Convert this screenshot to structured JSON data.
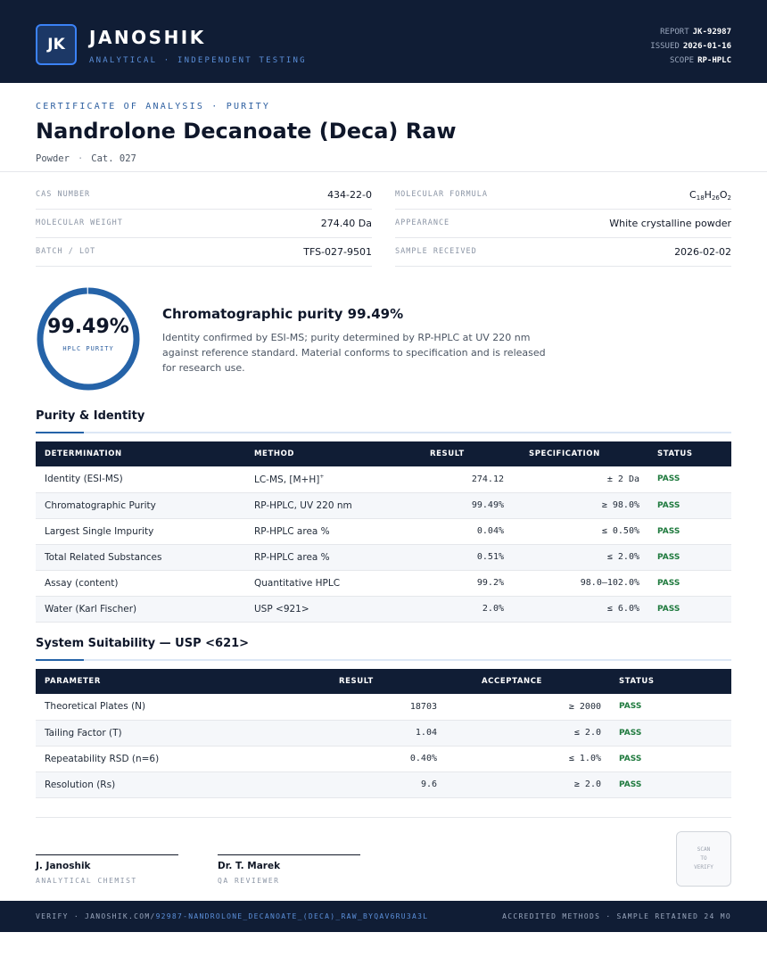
{
  "header": {
    "logo_initials": "JK",
    "brand": "JANOSHIK",
    "tagline": "ANALYTICAL · INDEPENDENT TESTING",
    "meta": [
      {
        "label": "REPORT",
        "value": "JK-92987"
      },
      {
        "label": "ISSUED",
        "value": "2026-01-16"
      },
      {
        "label": "SCOPE",
        "value": "RP-HPLC"
      }
    ]
  },
  "document": {
    "kicker": "CERTIFICATE OF ANALYSIS · PURITY",
    "title": "Nandrolone Decanoate (Deca) Raw",
    "form": "Powder",
    "catalog": "Cat. 027"
  },
  "properties": [
    {
      "label": "CAS NUMBER",
      "value": "434-22-0"
    },
    {
      "label": "MOLECULAR FORMULA",
      "value": "C",
      "formula": [
        {
          "el": "C",
          "n": "18"
        },
        {
          "el": "H",
          "n": "26"
        },
        {
          "el": "O",
          "n": "2"
        }
      ]
    },
    {
      "label": "MOLECULAR WEIGHT",
      "value": "274.40 Da"
    },
    {
      "label": "APPEARANCE",
      "value": "White crystalline powder"
    },
    {
      "label": "BATCH / LOT",
      "value": "TFS-027-9501"
    },
    {
      "label": "SAMPLE RECEIVED",
      "value": "2026-02-02"
    }
  ],
  "summary": {
    "ring_value": "99.49%",
    "ring_fraction": 0.9949,
    "ring_label": "HPLC PURITY",
    "title": "Chromatographic purity 99.49%",
    "text": "Identity confirmed by ESI-MS; purity determined by RP-HPLC at UV 220 nm against reference standard. Material conforms to specification and is released for research use."
  },
  "purity_section": {
    "title": "Purity & Identity",
    "columns": [
      "DETERMINATION",
      "METHOD",
      "RESULT",
      "SPECIFICATION",
      "STATUS"
    ],
    "rows": [
      {
        "determination": "Identity (ESI-MS)",
        "method": "LC-MS, [M+H]",
        "method_sup": "+",
        "result": "274.12",
        "spec": "± 2 Da",
        "status": "PASS"
      },
      {
        "determination": "Chromatographic Purity",
        "method": "RP-HPLC, UV 220 nm",
        "result": "99.49%",
        "spec": "≥ 98.0%",
        "status": "PASS"
      },
      {
        "determination": "Largest Single Impurity",
        "method": "RP-HPLC area %",
        "result": "0.04%",
        "spec": "≤ 0.50%",
        "status": "PASS"
      },
      {
        "determination": "Total Related Substances",
        "method": "RP-HPLC area %",
        "result": "0.51%",
        "spec": "≤ 2.0%",
        "status": "PASS"
      },
      {
        "determination": "Assay (content)",
        "method": "Quantitative HPLC",
        "result": "99.2%",
        "spec": "98.0–102.0%",
        "status": "PASS"
      },
      {
        "determination": "Water (Karl Fischer)",
        "method": "USP <921>",
        "result": "2.0%",
        "spec": "≤ 6.0%",
        "status": "PASS"
      }
    ]
  },
  "suitability_section": {
    "title": "System Suitability — USP <621>",
    "columns": [
      "PARAMETER",
      "RESULT",
      "ACCEPTANCE",
      "STATUS"
    ],
    "rows": [
      {
        "parameter": "Theoretical Plates (N)",
        "result": "18703",
        "acceptance": "≥ 2000",
        "status": "PASS"
      },
      {
        "parameter": "Tailing Factor (T)",
        "result": "1.04",
        "acceptance": "≤ 2.0",
        "status": "PASS"
      },
      {
        "parameter": "Repeatability RSD (n=6)",
        "result": "0.40%",
        "acceptance": "≤ 1.0%",
        "status": "PASS"
      },
      {
        "parameter": "Resolution (Rs)",
        "result": "9.6",
        "acceptance": "≥ 2.0",
        "status": "PASS"
      }
    ]
  },
  "signatures": [
    {
      "name": "J. Janoshik",
      "role": "ANALYTICAL CHEMIST"
    },
    {
      "name": "Dr. T. Marek",
      "role": "QA REVIEWER"
    }
  ],
  "qr": {
    "lines": [
      "SCAN",
      "TO",
      "VERIFY"
    ]
  },
  "footer": {
    "verify_prefix": "VERIFY · JANOSHIK.COM/",
    "verify_path": "92987-NANDROLONE_DECANOATE_(DECA)_RAW_BYQAV6RU3A3L",
    "right": "ACCREDITED METHODS · SAMPLE RETAINED 24 MO"
  },
  "colors": {
    "navy": "#101d35",
    "accent": "#2563a8",
    "pass": "#1f7a3e"
  }
}
